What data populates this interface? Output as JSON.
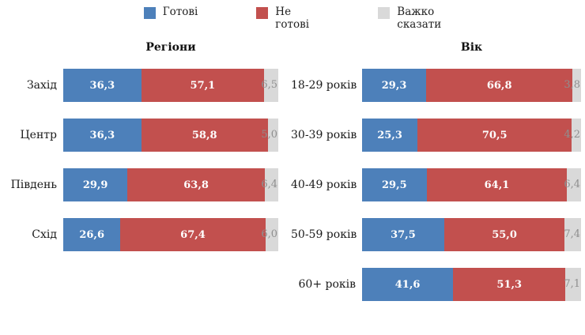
{
  "colors": {
    "ready": "#4d80ba",
    "not_ready": "#c2504e",
    "hard_to_say": "#d9d9d9",
    "gray_value_text": "#8f8f8f",
    "background": "#ffffff"
  },
  "legend": [
    {
      "name": "ready-swatch",
      "label": "Готові",
      "color": "#4d80ba"
    },
    {
      "name": "not-ready-swatch",
      "label": "Не готові",
      "color": "#c2504e"
    },
    {
      "name": "hard-to-say-swatch",
      "label": "Важко сказати",
      "color": "#d9d9d9"
    }
  ],
  "chart_data": [
    {
      "type": "bar",
      "orientation": "horizontal",
      "stacked": true,
      "title": "Регіони",
      "categories": [
        "Захід",
        "Центр",
        "Південь",
        "Схід"
      ],
      "series": [
        {
          "name": "Готові",
          "color": "#4d80ba",
          "values": [
            36.3,
            36.3,
            29.9,
            26.6
          ]
        },
        {
          "name": "Не готові",
          "color": "#c2504e",
          "values": [
            57.1,
            58.8,
            63.8,
            67.4
          ]
        },
        {
          "name": "Важко сказати",
          "color": "#d9d9d9",
          "values": [
            6.5,
            5.0,
            6.4,
            6.0
          ]
        }
      ],
      "xlim": [
        0,
        100
      ],
      "value_label_format": "comma-decimal",
      "legend_position": "top",
      "grid": false
    },
    {
      "type": "bar",
      "orientation": "horizontal",
      "stacked": true,
      "title": "Вік",
      "categories": [
        "18-29 років",
        "30-39 років",
        "40-49 років",
        "50-59 років",
        "60+ років"
      ],
      "series": [
        {
          "name": "Готові",
          "color": "#4d80ba",
          "values": [
            29.3,
            25.3,
            29.5,
            37.5,
            41.6
          ]
        },
        {
          "name": "Не готові",
          "color": "#c2504e",
          "values": [
            66.8,
            70.5,
            64.1,
            55.0,
            51.3
          ]
        },
        {
          "name": "Важко сказати",
          "color": "#d9d9d9",
          "values": [
            3.8,
            4.2,
            6.4,
            7.4,
            7.1
          ]
        }
      ],
      "xlim": [
        0,
        100
      ],
      "value_label_format": "comma-decimal",
      "legend_position": "top",
      "grid": false
    }
  ]
}
